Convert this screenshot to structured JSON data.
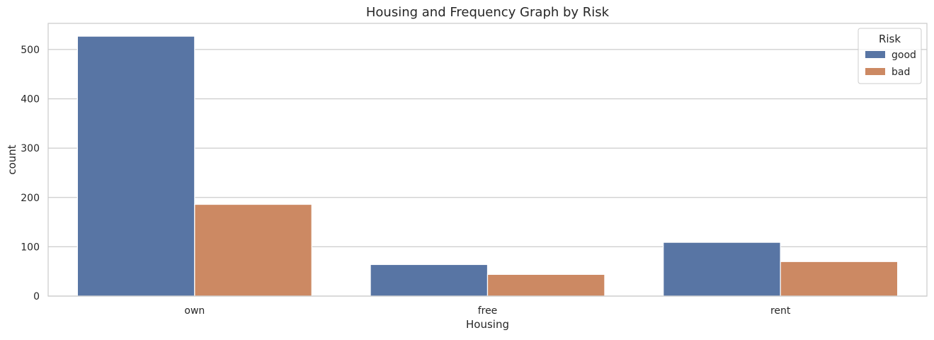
{
  "chart_data": {
    "type": "bar",
    "title": "Housing and Frequency Graph by Risk",
    "xlabel": "Housing",
    "ylabel": "count",
    "categories": [
      "own",
      "free",
      "rent"
    ],
    "series": [
      {
        "name": "good",
        "values": [
          527,
          64,
          109
        ],
        "color": "#5875a4"
      },
      {
        "name": "bad",
        "values": [
          186,
          44,
          70
        ],
        "color": "#cc8963"
      }
    ],
    "ylim": [
      0,
      553
    ],
    "yticks": [
      0,
      100,
      200,
      300,
      400,
      500
    ],
    "grid": "horizontal",
    "legend": {
      "title": "Risk",
      "placement": "top-right"
    }
  }
}
